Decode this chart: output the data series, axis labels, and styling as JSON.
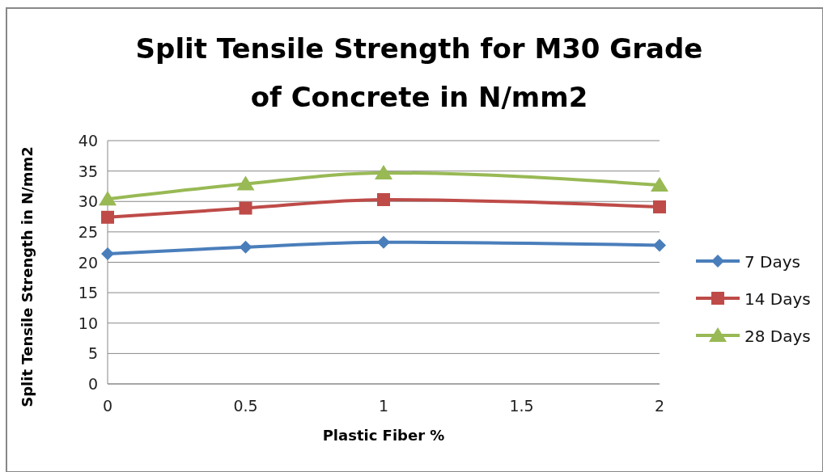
{
  "chart_data": {
    "type": "line",
    "title": "Split Tensile Strength for M30 Grade of Concrete in N/mm2",
    "xlabel": "Plastic Fiber %",
    "ylabel": "Split Tensile Strength in N/mm2",
    "x": [
      0,
      0.5,
      1,
      2
    ],
    "series": [
      {
        "name": "7 Days",
        "color": "#4a7ebb",
        "marker": "diamond",
        "values": [
          21.4,
          22.5,
          23.3,
          22.8
        ]
      },
      {
        "name": "14 Days",
        "color": "#be4b48",
        "marker": "square",
        "values": [
          27.4,
          28.9,
          30.3,
          29.1
        ]
      },
      {
        "name": "28 Days",
        "color": "#98b954",
        "marker": "triangle",
        "values": [
          30.4,
          32.9,
          34.7,
          32.7
        ]
      }
    ],
    "xlim": [
      0,
      2
    ],
    "xticks": [
      0,
      0.5,
      1,
      1.5,
      2
    ],
    "ylim": [
      0,
      40
    ],
    "yticks": [
      0,
      5,
      10,
      15,
      20,
      25,
      30,
      35,
      40
    ],
    "grid": "y",
    "legend": "right"
  }
}
